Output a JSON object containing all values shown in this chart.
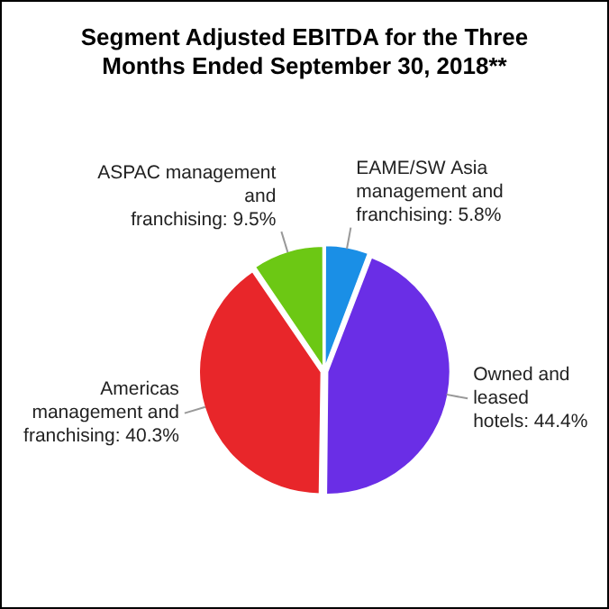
{
  "chart_data": {
    "type": "pie",
    "title": "Segment Adjusted EBITDA for the Three Months Ended September 30, 2018**",
    "categories": [
      "EAME/SW Asia management and franchising",
      "Owned and leased hotels",
      "Americas management and franchising",
      "ASPAC management and franchising"
    ],
    "values": [
      5.8,
      44.4,
      40.3,
      9.5
    ],
    "colors": [
      "#1a8fe6",
      "#6a2ee6",
      "#e8262a",
      "#6cc814"
    ],
    "value_labels": [
      "5.8%",
      "44.4%",
      "40.3%",
      "9.5%"
    ],
    "legend": false
  }
}
